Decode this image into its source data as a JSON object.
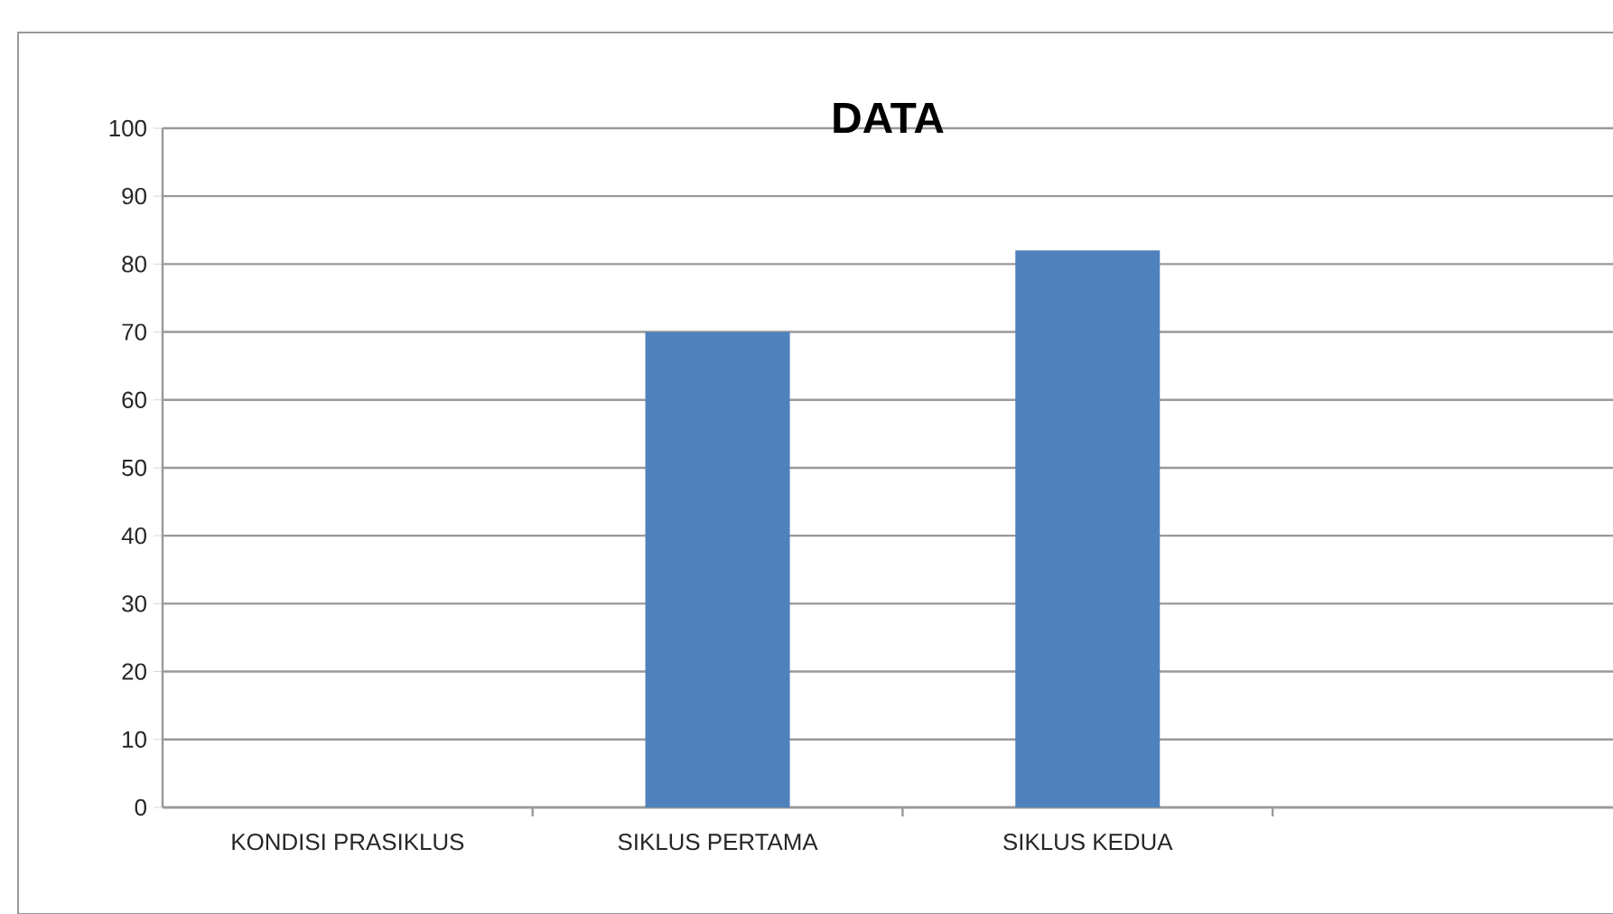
{
  "chart_data": {
    "type": "bar",
    "title": "DATA",
    "categories": [
      "KONDISI PRASIKLUS",
      "SIKLUS PERTAMA",
      "SIKLUS KEDUA",
      null
    ],
    "values": [
      null,
      70,
      82,
      null
    ],
    "color": "#4f81bd",
    "ylim": [
      0,
      100
    ],
    "yticks": [
      0,
      10,
      20,
      30,
      40,
      50,
      60,
      70,
      80,
      90,
      100
    ],
    "grid": "y"
  }
}
